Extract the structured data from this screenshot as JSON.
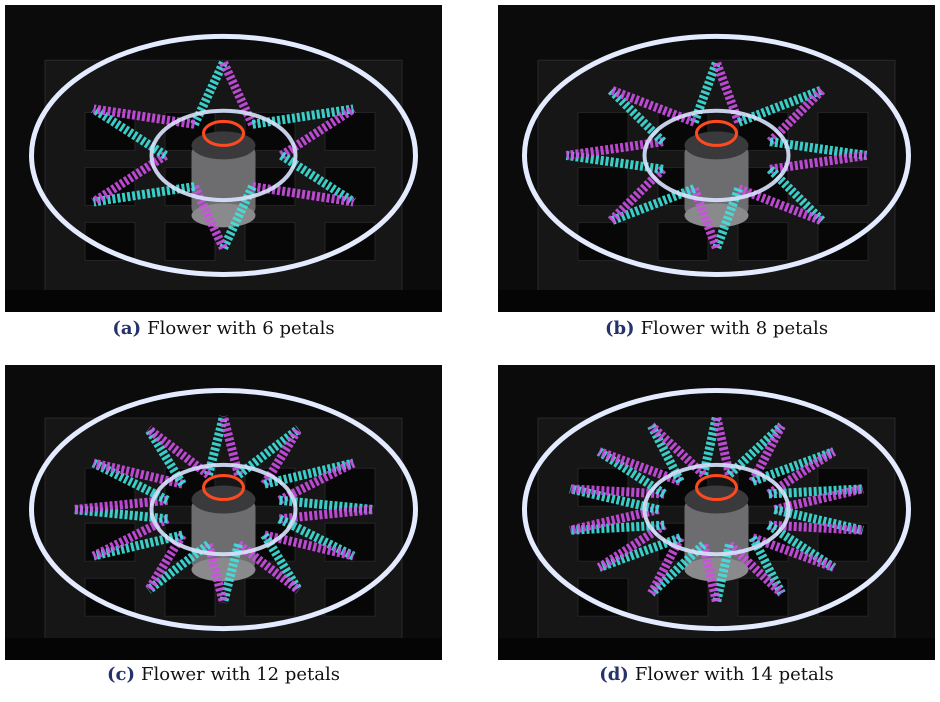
{
  "figures": [
    {
      "label": "(a)",
      "caption": "Flower with 6 petals"
    },
    {
      "label": "(b)",
      "caption": "Flower with 8 petals"
    },
    {
      "label": "(c)",
      "caption": "Flower with 12 petals"
    },
    {
      "label": "(d)",
      "caption": "Flower with 14 petals"
    }
  ]
}
